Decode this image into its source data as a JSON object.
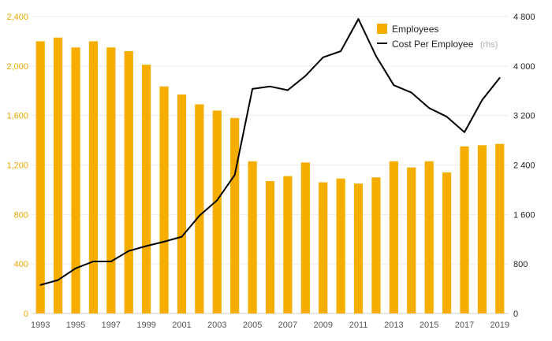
{
  "chart_data": {
    "type": "bar",
    "categories": [
      "1993",
      "1994",
      "1995",
      "1996",
      "1997",
      "1998",
      "1999",
      "2000",
      "2001",
      "2002",
      "2003",
      "2004",
      "2005",
      "2006",
      "2007",
      "2008",
      "2009",
      "2010",
      "2011",
      "2012",
      "2013",
      "2014",
      "2015",
      "2016",
      "2017",
      "2018",
      "2019"
    ],
    "x_tick_labels": [
      "1993",
      "1995",
      "1997",
      "1999",
      "2001",
      "2003",
      "2005",
      "2007",
      "2009",
      "2011",
      "2013",
      "2015",
      "2017",
      "2019"
    ],
    "series": [
      {
        "name": "Employees",
        "type": "bar",
        "axis": "left",
        "color": "#f5ae00",
        "values": [
          2200,
          2230,
          2150,
          2200,
          2150,
          2120,
          2010,
          1835,
          1770,
          1690,
          1640,
          1580,
          1230,
          1070,
          1110,
          1220,
          1060,
          1090,
          1050,
          1100,
          1230,
          1180,
          1230,
          1140,
          1350,
          1360,
          1370
        ]
      },
      {
        "name": "Cost Per Employee",
        "name_note": "(rhs)",
        "type": "line",
        "axis": "right",
        "color": "#000000",
        "values": [
          460,
          540,
          730,
          840,
          840,
          1010,
          1090,
          1160,
          1240,
          1580,
          1830,
          2240,
          3630,
          3670,
          3610,
          3840,
          4140,
          4240,
          4760,
          4160,
          3690,
          3570,
          3320,
          3180,
          2930,
          3450,
          3810
        ]
      }
    ],
    "y_left": {
      "ylim": [
        0,
        2400
      ],
      "ticks": [
        "0",
        "400",
        "800",
        "1,200",
        "1,600",
        "2,000",
        "2,400"
      ]
    },
    "y_right": {
      "ylim": [
        0,
        4800
      ],
      "ticks": [
        "0",
        "800",
        "1 600",
        "2 400",
        "3 200",
        "4 000",
        "4 800"
      ]
    },
    "grid": true,
    "legend_position": "top-right",
    "legend": [
      {
        "label": "Employees",
        "note": ""
      },
      {
        "label": "Cost Per Employee",
        "note": "(rhs)"
      }
    ]
  }
}
